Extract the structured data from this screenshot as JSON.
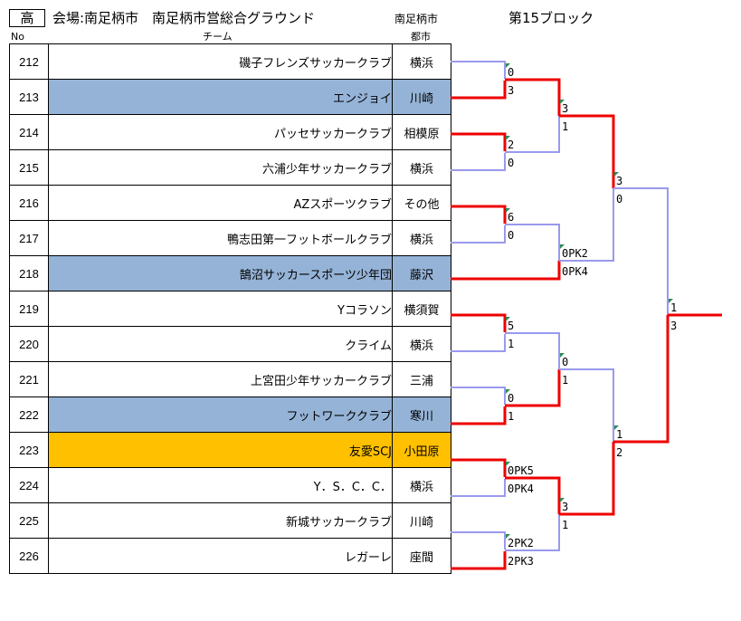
{
  "header": {
    "category": "高",
    "venue": "会場:南足柄市　南足柄市営総合グラウンド",
    "city": "南足柄市",
    "block": "第15ブロック"
  },
  "columns": {
    "no": "No",
    "team": "チーム",
    "city": "都市"
  },
  "colors": {
    "loser_line": "#9999ee",
    "winner_line": "#ee0000",
    "highlight_blue": "#95b3d7",
    "highlight_gold": "#ffc000"
  },
  "teams": [
    {
      "no": "212",
      "name": "磯子フレンズサッカークラブ",
      "city": "横浜",
      "highlight": ""
    },
    {
      "no": "213",
      "name": "エンジョイ",
      "city": "川崎",
      "highlight": "blue"
    },
    {
      "no": "214",
      "name": "パッセサッカークラブ",
      "city": "相模原",
      "highlight": ""
    },
    {
      "no": "215",
      "name": "六浦少年サッカークラブ",
      "city": "横浜",
      "highlight": ""
    },
    {
      "no": "216",
      "name": "AZスポーツクラブ",
      "city": "その他",
      "highlight": ""
    },
    {
      "no": "217",
      "name": "鴨志田第一フットボールクラブ",
      "city": "横浜",
      "highlight": ""
    },
    {
      "no": "218",
      "name": "鵠沼サッカースポーツ少年団",
      "city": "藤沢",
      "highlight": "blue"
    },
    {
      "no": "219",
      "name": "Yコラソン",
      "city": "横須賀",
      "highlight": ""
    },
    {
      "no": "220",
      "name": "クライム",
      "city": "横浜",
      "highlight": ""
    },
    {
      "no": "221",
      "name": "上宮田少年サッカークラブ",
      "city": "三浦",
      "highlight": ""
    },
    {
      "no": "222",
      "name": "フットワーククラブ",
      "city": "寒川",
      "highlight": "blue"
    },
    {
      "no": "223",
      "name": "友愛SCJ",
      "city": "小田原",
      "highlight": "gold"
    },
    {
      "no": "224",
      "name": "Y．S．C．C．",
      "city": "横浜",
      "highlight": ""
    },
    {
      "no": "225",
      "name": "新城サッカークラブ",
      "city": "川崎",
      "highlight": ""
    },
    {
      "no": "226",
      "name": "レガーレ",
      "city": "座間",
      "highlight": ""
    }
  ],
  "scores": {
    "r1_212_213": [
      "0",
      "3"
    ],
    "r1_214_215": [
      "2",
      "0"
    ],
    "r1_216_217": [
      "6",
      "0"
    ],
    "r1_219_220": [
      "5",
      "1"
    ],
    "r1_221_222": [
      "0",
      "1"
    ],
    "r1_223_224": [
      "0PK5",
      "0PK4"
    ],
    "r1_225_226": [
      "2PK2",
      "2PK3"
    ],
    "r2_a": [
      "3",
      "1"
    ],
    "r2_b": [
      "0PK2",
      "0PK4"
    ],
    "r2_c": [
      "0",
      "1"
    ],
    "r2_d": [
      "3",
      "1"
    ],
    "r3_top": [
      "3",
      "0"
    ],
    "r3_bottom": [
      "1",
      "2"
    ],
    "final": [
      "1",
      "3"
    ]
  }
}
